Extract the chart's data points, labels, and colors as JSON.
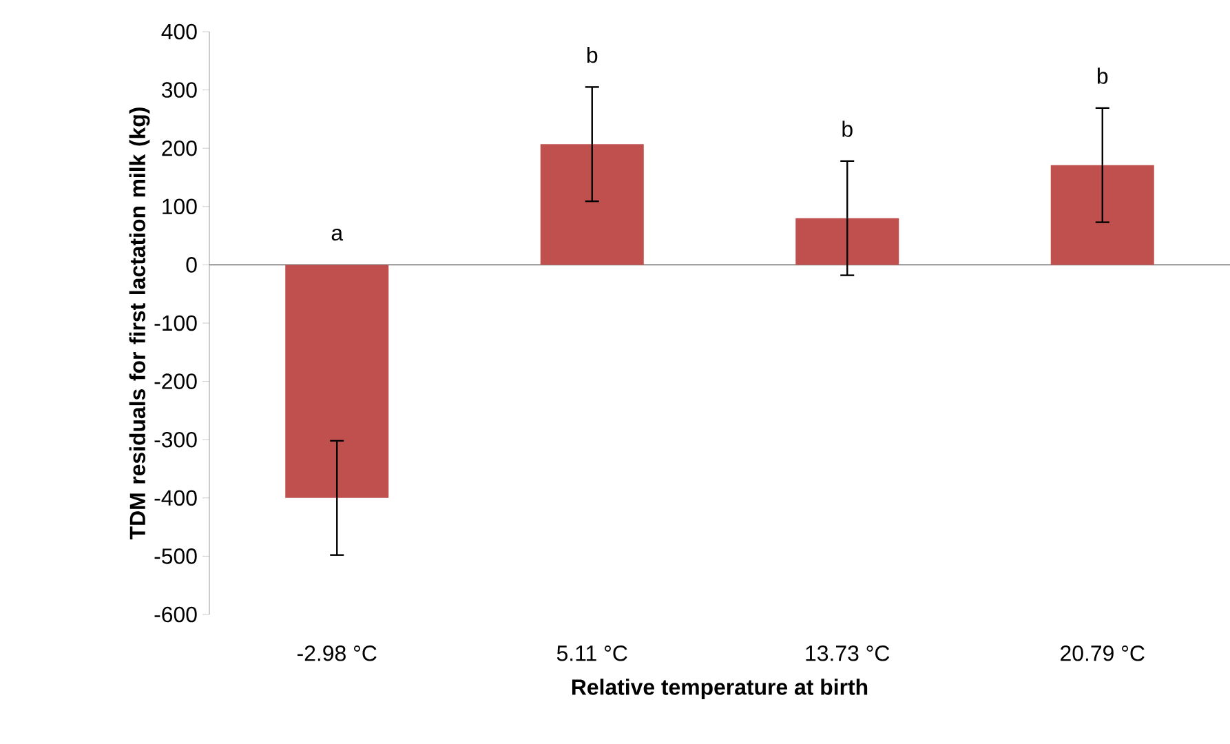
{
  "chart_data": {
    "type": "bar",
    "xlabel": "Relative temperature at birth",
    "ylabel": "TDM residuals for first lactation milk (kg)",
    "categories": [
      "-2.98 °C",
      "5.11 °C",
      "13.73 °C",
      "20.79 °C"
    ],
    "values": [
      -400,
      207,
      80,
      171
    ],
    "errors": [
      98,
      98,
      98,
      98
    ],
    "color": "#c0504d",
    "ylim": [
      -600,
      400
    ],
    "yticks": [
      -600,
      -500,
      -400,
      -300,
      -200,
      -100,
      0,
      100,
      200,
      300,
      400
    ],
    "annotations": [
      "a",
      "b",
      "b",
      "b"
    ]
  }
}
